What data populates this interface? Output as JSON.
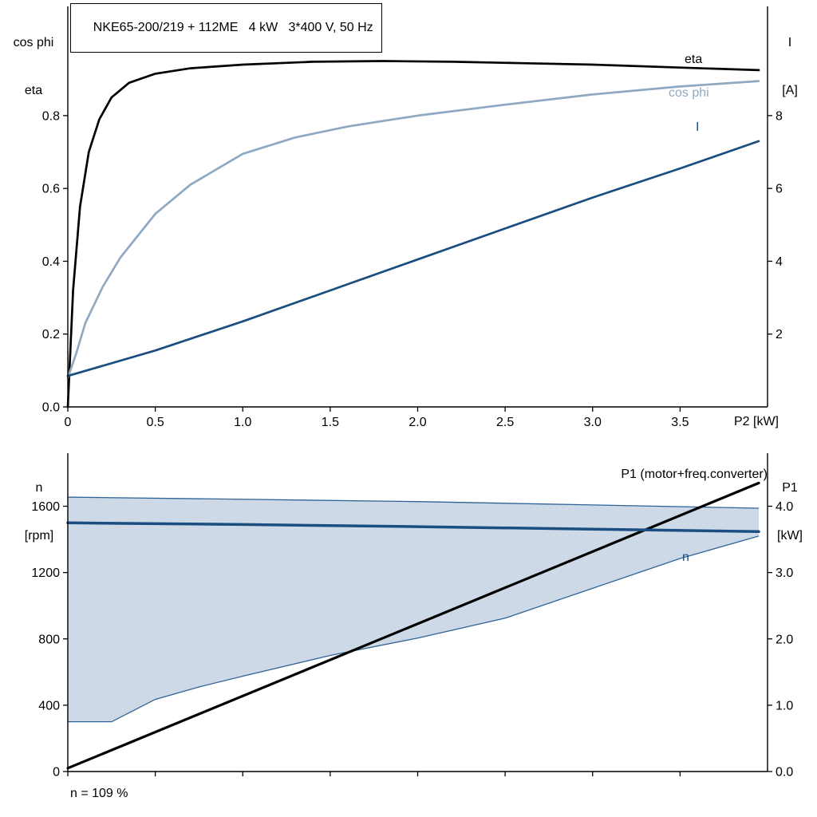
{
  "chart_data": [
    {
      "type": "line",
      "title": "NKE65-200/219 + 112ME   4 kW   3*400 V, 50 Hz",
      "xlabel": "P2 [kW]",
      "ylabel_left": "cos phi / eta",
      "ylabel_right": "I [A]",
      "xlim": [
        0,
        4.0
      ],
      "ylim_left": [
        0,
        1.1
      ],
      "ylim_right": [
        0,
        11
      ],
      "grid": false,
      "legend_position": "right-inline",
      "x_ticks": [
        0,
        0.5,
        1.0,
        1.5,
        2.0,
        2.5,
        3.0,
        3.5
      ],
      "x_tick_labels": [
        "0",
        "0.5",
        "1.0",
        "1.5",
        "2.0",
        "2.5",
        "3.0",
        "3.5"
      ],
      "y_ticks_left": [
        0.0,
        0.2,
        0.4,
        0.6,
        0.8
      ],
      "y_tick_labels_left": [
        "0.0",
        "0.2",
        "0.4",
        "0.6",
        "0.8"
      ],
      "y_ticks_right": [
        2,
        4,
        6,
        8
      ],
      "y_tick_labels_right": [
        "2",
        "4",
        "6",
        "8"
      ],
      "series": [
        {
          "name": "eta",
          "axis": "left",
          "color": "#000000",
          "x": [
            0,
            0.03,
            0.07,
            0.12,
            0.18,
            0.25,
            0.35,
            0.5,
            0.7,
            1.0,
            1.4,
            1.8,
            2.2,
            2.6,
            3.0,
            3.5,
            3.95
          ],
          "y": [
            0,
            0.32,
            0.55,
            0.7,
            0.79,
            0.85,
            0.89,
            0.915,
            0.93,
            0.94,
            0.948,
            0.95,
            0.948,
            0.944,
            0.94,
            0.932,
            0.925
          ]
        },
        {
          "name": "cos phi",
          "axis": "left",
          "color": "#8fa9c3",
          "x": [
            0,
            0.05,
            0.1,
            0.2,
            0.3,
            0.4,
            0.5,
            0.7,
            1.0,
            1.3,
            1.6,
            2.0,
            2.5,
            3.0,
            3.5,
            3.95
          ],
          "y": [
            0.08,
            0.15,
            0.23,
            0.33,
            0.41,
            0.47,
            0.53,
            0.61,
            0.695,
            0.74,
            0.77,
            0.8,
            0.83,
            0.858,
            0.88,
            0.895
          ]
        },
        {
          "name": "I",
          "axis": "right",
          "color": "#1a4d80",
          "x": [
            0,
            0.5,
            1.0,
            1.5,
            2.0,
            2.5,
            3.0,
            3.5,
            3.95
          ],
          "y": [
            0.85,
            1.55,
            2.35,
            3.2,
            4.05,
            4.9,
            5.75,
            6.55,
            7.3
          ]
        }
      ]
    },
    {
      "type": "line",
      "title": "",
      "xlabel": "",
      "ylabel_left": "n [rpm]",
      "ylabel_right": "P1 [kW]",
      "xlim": [
        0,
        4.0
      ],
      "ylim_left": [
        0,
        1920
      ],
      "ylim_right": [
        0,
        4.8
      ],
      "grid": false,
      "annotation": "n = 109 %",
      "x_ticks": [
        0,
        0.5,
        1.0,
        1.5,
        2.0,
        2.5,
        3.0,
        3.5
      ],
      "x_tick_labels": [],
      "y_ticks_left": [
        0,
        400,
        800,
        1200,
        1600
      ],
      "y_tick_labels_left": [
        "0",
        "400",
        "800",
        "1200",
        "1600"
      ],
      "y_ticks_right": [
        0,
        1,
        2,
        3,
        4
      ],
      "y_tick_labels_right": [
        "0.0",
        "1.0",
        "2.0",
        "3.0",
        "4.0"
      ],
      "band": {
        "label": "speed-operating-range",
        "fill": "#cdd9e6",
        "edge": "#2f6397",
        "x_upper": [
          0,
          1.0,
          2.0,
          3.0,
          3.95
        ],
        "upper": [
          1655,
          1642,
          1628,
          1608,
          1588
        ],
        "x_lower": [
          0,
          0.25,
          0.5,
          0.75,
          1.0,
          1.5,
          2.0,
          2.5,
          3.0,
          3.5,
          3.95
        ],
        "lower": [
          300,
          300,
          435,
          510,
          575,
          700,
          805,
          925,
          1105,
          1285,
          1420
        ]
      },
      "series": [
        {
          "name": "P1 (motor+freq.converter)",
          "axis": "right",
          "color": "#000000",
          "width": 3.2,
          "x": [
            0,
            3.95
          ],
          "y": [
            0.05,
            4.35
          ]
        },
        {
          "name": "n",
          "axis": "left",
          "color": "#1a4d80",
          "width": 3.5,
          "x": [
            0,
            1.0,
            2.0,
            3.0,
            3.95
          ],
          "y": [
            1500,
            1490,
            1477,
            1462,
            1447
          ]
        }
      ]
    }
  ],
  "axis_labels": {
    "top_left": [
      "cos phi",
      "eta"
    ],
    "top_right": [
      "I",
      "[A]"
    ],
    "bottom_left": [
      "n",
      "[rpm]"
    ],
    "bottom_right": [
      "P1",
      "[kW]"
    ]
  },
  "colors": {
    "eta": "#000000",
    "cos_phi": "#8fa9c3",
    "current": "#1a4d80",
    "n_line": "#1a4d80",
    "p1_line": "#000000",
    "band_fill": "#cdd9e6",
    "band_edge": "#2f6397",
    "axis": "#000000"
  }
}
